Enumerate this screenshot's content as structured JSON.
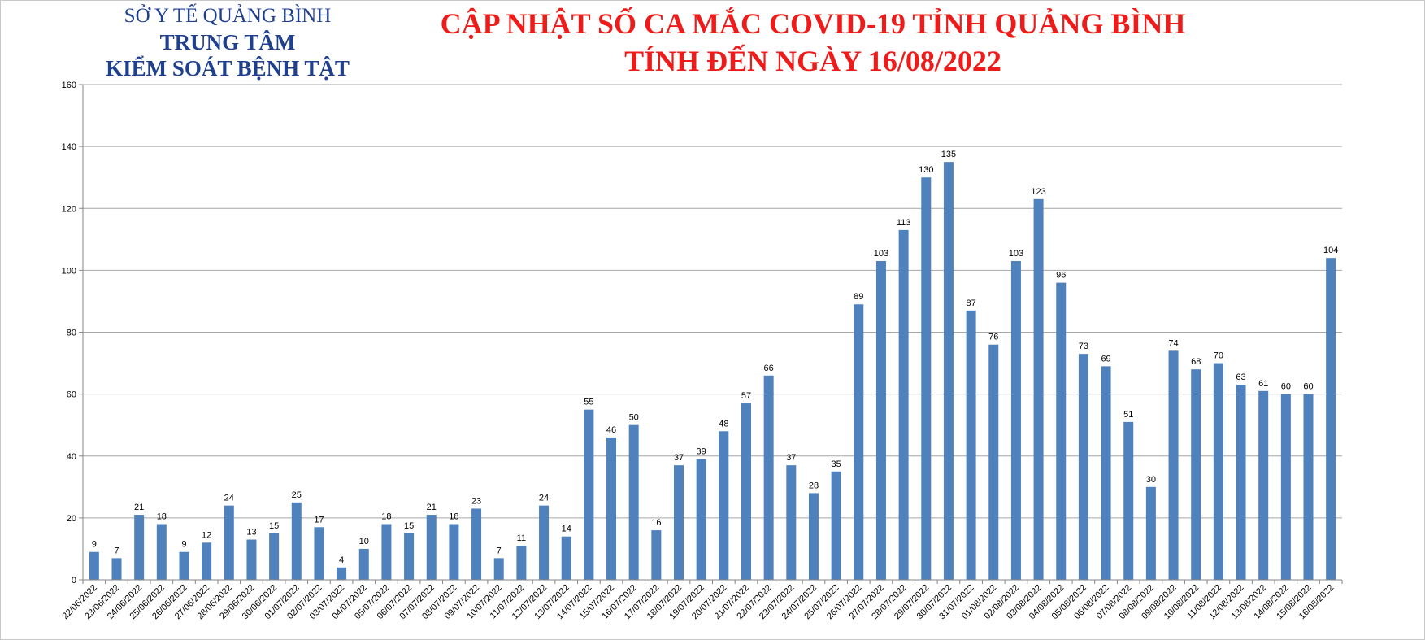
{
  "header": {
    "org_line1": "SỞ Y TẾ QUẢNG BÌNH",
    "org_line2": "TRUNG TÂM",
    "org_line3": "KIỂM SOÁT BỆNH TẬT",
    "title_line1": "CẬP NHẬT SỐ CA MẮC COVID-19 TỈNH QUẢNG BÌNH",
    "title_line2": "TÍNH ĐẾN NGÀY 16/08/2022"
  },
  "colors": {
    "bar": "#4f81bd",
    "title": "#ee1b1b",
    "org": "#1f3f8f",
    "grid": "#a6a6a6"
  },
  "chart_data": {
    "type": "bar",
    "title": "CẬP NHẬT SỐ CA MẮC COVID-19 TỈNH QUẢNG BÌNH TÍNH ĐẾN NGÀY 16/08/2022",
    "xlabel": "",
    "ylabel": "",
    "ylim": [
      0,
      160
    ],
    "yticks": [
      0,
      20,
      40,
      60,
      80,
      100,
      120,
      140,
      160
    ],
    "grid": true,
    "legend": "none",
    "data_labels": true,
    "categories": [
      "22/06/2022",
      "23/06/2022",
      "24/06/2022",
      "25/06/2022",
      "26/06/2022",
      "27/06/2022",
      "28/06/2022",
      "29/06/2022",
      "30/06/2022",
      "01/07/2022",
      "02/07/2022",
      "03/07/2022",
      "04/07/2022",
      "05/07/2022",
      "06/07/2022",
      "07/07/2022",
      "08/07/2022",
      "09/07/2022",
      "10/07/2022",
      "11/07/2022",
      "12/07/2022",
      "13/07/2022",
      "14/07/2022",
      "15/07/2022",
      "16/07/2022",
      "17/07/2022",
      "18/07/2022",
      "19/07/2022",
      "20/07/2022",
      "21/07/2022",
      "22/07/2022",
      "23/07/2022",
      "24/07/2022",
      "25/07/2022",
      "26/07/2022",
      "27/07/2022",
      "28/07/2022",
      "29/07/2022",
      "30/07/2022",
      "31/07/2022",
      "01/08/2022",
      "02/08/2022",
      "03/08/2022",
      "04/08/2022",
      "05/08/2022",
      "06/08/2022",
      "07/08/2022",
      "08/08/2022",
      "09/08/2022",
      "10/08/2022",
      "11/08/2022",
      "12/08/2022",
      "13/08/2022",
      "14/08/2022",
      "15/08/2022",
      "16/08/2022"
    ],
    "values": [
      9,
      7,
      21,
      18,
      9,
      12,
      24,
      13,
      15,
      25,
      17,
      4,
      10,
      18,
      15,
      21,
      18,
      23,
      7,
      11,
      24,
      14,
      55,
      46,
      50,
      16,
      37,
      39,
      48,
      57,
      66,
      37,
      28,
      35,
      89,
      103,
      113,
      130,
      135,
      87,
      76,
      103,
      123,
      96,
      73,
      69,
      51,
      30,
      74,
      68,
      70,
      63,
      61,
      60,
      60,
      104
    ]
  }
}
